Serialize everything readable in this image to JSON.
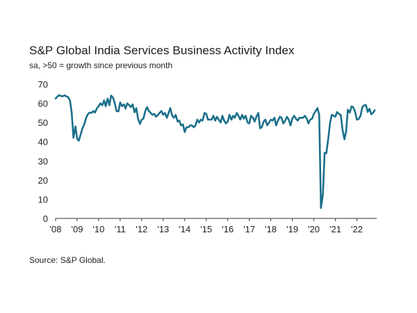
{
  "chart_data": {
    "type": "line",
    "title": "S&P Global India Services Business Activity Index",
    "subtitle": "sa, >50 = growth since previous month",
    "source": "Source: S&P Global.",
    "xlabel": "",
    "ylabel": "",
    "ylim": [
      0,
      70
    ],
    "yticks": [
      0,
      10,
      20,
      30,
      40,
      50,
      60,
      70
    ],
    "xlim": [
      2008.0,
      2022.92
    ],
    "xticks": [
      {
        "value": 2008,
        "label": "'08"
      },
      {
        "value": 2009,
        "label": "'09"
      },
      {
        "value": 2010,
        "label": "'10"
      },
      {
        "value": 2011,
        "label": "'11"
      },
      {
        "value": 2012,
        "label": "'12"
      },
      {
        "value": 2013,
        "label": "'13"
      },
      {
        "value": 2014,
        "label": "'14"
      },
      {
        "value": 2015,
        "label": "'15"
      },
      {
        "value": 2016,
        "label": "'16"
      },
      {
        "value": 2017,
        "label": "'17"
      },
      {
        "value": 2018,
        "label": "'18"
      },
      {
        "value": 2019,
        "label": "'19"
      },
      {
        "value": 2020,
        "label": "'20"
      },
      {
        "value": 2021,
        "label": "'21"
      },
      {
        "value": 2022,
        "label": "'22"
      }
    ],
    "grid": false,
    "line_color": "#1b6f8a",
    "series": [
      {
        "name": "",
        "x": [
          2008.0,
          2008.08,
          2008.17,
          2008.25,
          2008.33,
          2008.42,
          2008.5,
          2008.58,
          2008.67,
          2008.75,
          2008.83,
          2008.92,
          2009.0,
          2009.08,
          2009.17,
          2009.25,
          2009.33,
          2009.42,
          2009.5,
          2009.58,
          2009.67,
          2009.75,
          2009.83,
          2009.92,
          2010.0,
          2010.08,
          2010.17,
          2010.25,
          2010.33,
          2010.42,
          2010.5,
          2010.58,
          2010.67,
          2010.75,
          2010.83,
          2010.92,
          2011.0,
          2011.08,
          2011.17,
          2011.25,
          2011.33,
          2011.42,
          2011.5,
          2011.58,
          2011.67,
          2011.75,
          2011.83,
          2011.92,
          2012.0,
          2012.08,
          2012.17,
          2012.25,
          2012.33,
          2012.42,
          2012.5,
          2012.58,
          2012.67,
          2012.75,
          2012.83,
          2012.92,
          2013.0,
          2013.08,
          2013.17,
          2013.25,
          2013.33,
          2013.42,
          2013.5,
          2013.58,
          2013.67,
          2013.75,
          2013.83,
          2013.92,
          2014.0,
          2014.08,
          2014.17,
          2014.25,
          2014.33,
          2014.42,
          2014.5,
          2014.58,
          2014.67,
          2014.75,
          2014.83,
          2014.92,
          2015.0,
          2015.08,
          2015.17,
          2015.25,
          2015.33,
          2015.42,
          2015.5,
          2015.58,
          2015.67,
          2015.75,
          2015.83,
          2015.92,
          2016.0,
          2016.08,
          2016.17,
          2016.25,
          2016.33,
          2016.42,
          2016.5,
          2016.58,
          2016.67,
          2016.75,
          2016.83,
          2016.92,
          2017.0,
          2017.08,
          2017.17,
          2017.25,
          2017.33,
          2017.42,
          2017.5,
          2017.58,
          2017.67,
          2017.75,
          2017.83,
          2017.92,
          2018.0,
          2018.08,
          2018.17,
          2018.25,
          2018.33,
          2018.42,
          2018.5,
          2018.58,
          2018.67,
          2018.75,
          2018.83,
          2018.92,
          2019.0,
          2019.08,
          2019.17,
          2019.25,
          2019.33,
          2019.42,
          2019.5,
          2019.58,
          2019.67,
          2019.75,
          2019.83,
          2019.92,
          2020.0,
          2020.08,
          2020.17,
          2020.25,
          2020.33,
          2020.42,
          2020.5,
          2020.58,
          2020.67,
          2020.75,
          2020.83,
          2020.92,
          2021.0,
          2021.08,
          2021.17,
          2021.25,
          2021.33,
          2021.42,
          2021.5,
          2021.58,
          2021.67,
          2021.75,
          2021.83,
          2021.92,
          2022.0,
          2022.08,
          2022.17,
          2022.25,
          2022.33,
          2022.42,
          2022.5,
          2022.58,
          2022.67,
          2022.75,
          2022.83
        ],
        "values": [
          62.5,
          63.5,
          64.3,
          63.8,
          63.7,
          64.2,
          63.6,
          63.2,
          61.5,
          55.0,
          42.0,
          48.0,
          41.5,
          40.5,
          44.0,
          47.0,
          49.0,
          52.5,
          54.3,
          55.2,
          55.0,
          56.0,
          55.2,
          57.5,
          58.5,
          60.0,
          59.0,
          61.5,
          58.5,
          62.5,
          59.0,
          64.0,
          63.0,
          60.0,
          56.0,
          55.8,
          60.5,
          58.5,
          59.5,
          57.3,
          60.0,
          59.0,
          58.0,
          59.5,
          55.3,
          57.5,
          52.0,
          49.3,
          51.5,
          52.0,
          56.0,
          58.0,
          56.0,
          55.0,
          54.0,
          54.5,
          53.0,
          54.0,
          55.0,
          56.0,
          54.0,
          55.0,
          52.5,
          55.0,
          57.5,
          53.5,
          52.5,
          54.0,
          50.5,
          51.0,
          48.5,
          49.0,
          45.0,
          47.5,
          47.5,
          48.5,
          48.5,
          47.5,
          48.5,
          51.5,
          50.0,
          51.5,
          51.0,
          55.0,
          54.5,
          51.5,
          51.5,
          51.5,
          53.5,
          51.0,
          53.0,
          51.5,
          50.0,
          53.5,
          51.0,
          49.5,
          50.5,
          54.0,
          51.5,
          53.5,
          52.5,
          55.0,
          53.5,
          51.5,
          54.0,
          52.0,
          53.5,
          50.0,
          49.5,
          53.5,
          52.5,
          50.5,
          53.0,
          55.0,
          47.0,
          47.5,
          50.5,
          51.5,
          48.5,
          50.0,
          51.5,
          51.0,
          52.5,
          48.5,
          51.0,
          53.0,
          52.5,
          49.5,
          51.0,
          53.0,
          51.5,
          48.5,
          52.0,
          53.5,
          52.0,
          51.0,
          52.5,
          52.5,
          52.5,
          53.5,
          52.0,
          49.5,
          51.5,
          52.0,
          54.5,
          56.0,
          57.5,
          54.0,
          5.4,
          12.6,
          34.2,
          34.0,
          41.5,
          49.5,
          54.0,
          53.5,
          53.0,
          55.5,
          54.5,
          54.0,
          46.4,
          41.2,
          45.4,
          56.7,
          55.2,
          58.4,
          58.1,
          55.5,
          51.5,
          51.8,
          53.6,
          57.9,
          58.9,
          59.2,
          55.5,
          57.2,
          54.3,
          55.1,
          56.4
        ]
      }
    ]
  }
}
